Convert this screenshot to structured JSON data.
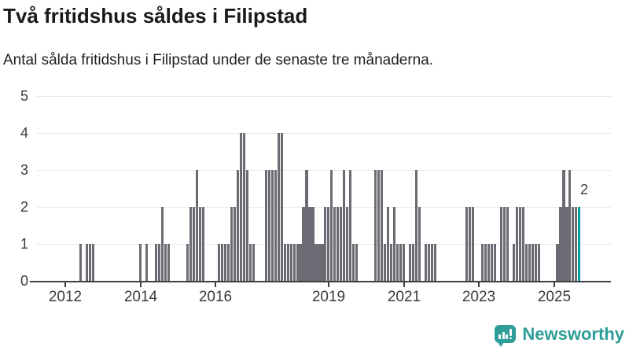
{
  "header": {
    "title": "Två fritidshus såldes i Filipstad",
    "subtitle": "Antal sålda fritidshus i Filipstad under de senaste tre månaderna."
  },
  "footer": {
    "logo_text": "Newsworthy"
  },
  "colors": {
    "bar": "#6b6b73",
    "highlight_bar": "#00a09e",
    "logo_teal": "#2f9e98",
    "gridline": "#e7e7e7",
    "axis": "#3f3f46",
    "title_text": "#1a1a1a",
    "tick_text": "#3a3a3a"
  },
  "chart_data": {
    "type": "bar",
    "title": "Två fritidshus såldes i Filipstad",
    "subtitle": "Antal sålda fritidshus i Filipstad under de senaste tre månaderna.",
    "x_start": "2011-04",
    "x_end": "2025-09",
    "x_tick_years": [
      "2012",
      "2014",
      "2016",
      "2019",
      "2021",
      "2023",
      "2025"
    ],
    "y_ticks": [
      "0",
      "1",
      "2",
      "3",
      "4",
      "5"
    ],
    "ylim": [
      0,
      5
    ],
    "grid": true,
    "legend": "none",
    "months_not_listed_value": 0,
    "bar_values_by_month": {
      "2012-06": 1,
      "2012-08": 1,
      "2012-09": 1,
      "2012-10": 1,
      "2014-01": 1,
      "2014-03": 1,
      "2014-06": 1,
      "2014-07": 1,
      "2014-08": 2,
      "2014-09": 1,
      "2014-10": 1,
      "2015-04": 1,
      "2015-05": 2,
      "2015-06": 2,
      "2015-07": 3,
      "2015-08": 2,
      "2015-09": 2,
      "2016-02": 1,
      "2016-03": 1,
      "2016-04": 1,
      "2016-05": 1,
      "2016-06": 2,
      "2016-07": 2,
      "2016-08": 3,
      "2016-09": 4,
      "2016-10": 4,
      "2016-11": 3,
      "2016-12": 1,
      "2017-01": 1,
      "2017-05": 3,
      "2017-06": 3,
      "2017-07": 3,
      "2017-08": 3,
      "2017-09": 4,
      "2017-10": 4,
      "2017-11": 1,
      "2017-12": 1,
      "2018-01": 1,
      "2018-02": 1,
      "2018-03": 1,
      "2018-04": 1,
      "2018-05": 2,
      "2018-06": 3,
      "2018-07": 2,
      "2018-08": 2,
      "2018-09": 1,
      "2018-10": 1,
      "2018-11": 1,
      "2018-12": 2,
      "2019-01": 2,
      "2019-02": 3,
      "2019-03": 2,
      "2019-04": 2,
      "2019-05": 2,
      "2019-06": 3,
      "2019-07": 2,
      "2019-08": 3,
      "2019-09": 1,
      "2019-10": 1,
      "2020-04": 3,
      "2020-05": 3,
      "2020-06": 3,
      "2020-07": 1,
      "2020-08": 2,
      "2020-09": 1,
      "2020-10": 2,
      "2020-11": 1,
      "2020-12": 1,
      "2021-01": 1,
      "2021-03": 1,
      "2021-04": 1,
      "2021-05": 3,
      "2021-06": 2,
      "2021-08": 1,
      "2021-09": 1,
      "2021-10": 1,
      "2021-11": 1,
      "2022-09": 2,
      "2022-10": 2,
      "2022-11": 2,
      "2023-02": 1,
      "2023-03": 1,
      "2023-04": 1,
      "2023-05": 1,
      "2023-06": 1,
      "2023-08": 2,
      "2023-09": 2,
      "2023-10": 2,
      "2023-12": 1,
      "2024-01": 2,
      "2024-02": 2,
      "2024-03": 2,
      "2024-04": 1,
      "2024-05": 1,
      "2024-06": 1,
      "2024-07": 1,
      "2024-08": 1,
      "2025-02": 1,
      "2025-03": 2,
      "2025-04": 3,
      "2025-05": 2,
      "2025-06": 3,
      "2025-07": 2,
      "2025-08": 2,
      "2025-09": 2
    },
    "highlight": {
      "month": "2025-09",
      "value": 2,
      "data_label": "2"
    }
  }
}
